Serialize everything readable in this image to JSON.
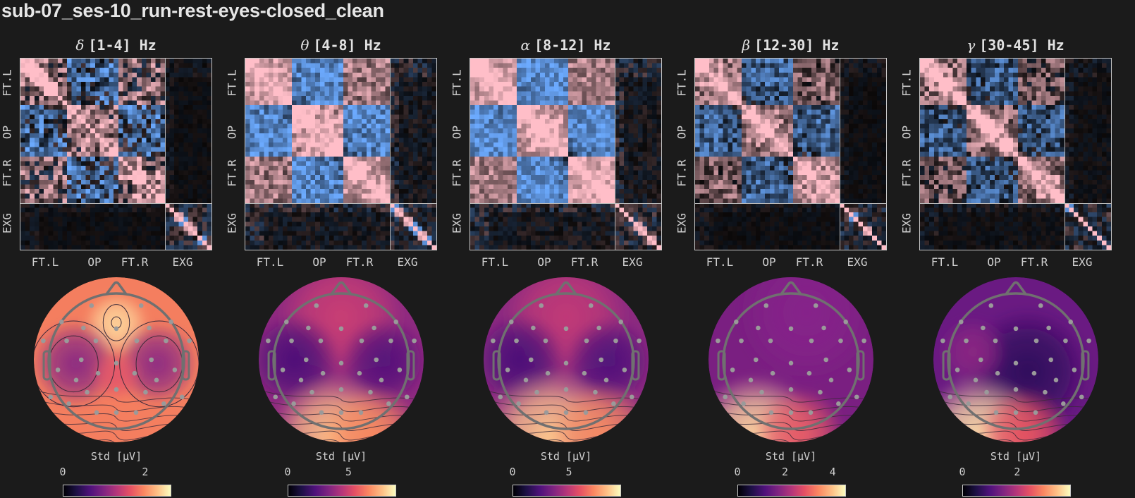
{
  "title": "sub-07_ses-10_run-rest-eyes-closed_clean",
  "matrix_groups": {
    "labels": [
      "FT.L",
      "OP",
      "FT.R",
      "EXG"
    ],
    "n_channels": 41,
    "n_main": 31
  },
  "panels": [
    {
      "greek": "δ",
      "range": "[1-4] Hz",
      "cbar_title": "Std [μV]",
      "cbar_ticks": [
        "0",
        "2"
      ],
      "cbar_max": 2.6,
      "topo_pattern": "delta"
    },
    {
      "greek": "θ",
      "range": "[4-8] Hz",
      "cbar_title": "Std [μV]",
      "cbar_ticks": [
        "0",
        "5"
      ],
      "cbar_max": 8.8,
      "topo_pattern": "theta"
    },
    {
      "greek": "α",
      "range": "[8-12] Hz",
      "cbar_title": "Std [μV]",
      "cbar_ticks": [
        "0",
        "5"
      ],
      "cbar_max": 9.5,
      "topo_pattern": "alpha"
    },
    {
      "greek": "β",
      "range": "[12-30] Hz",
      "cbar_title": "Std [μV]",
      "cbar_ticks": [
        "0",
        "2",
        "4"
      ],
      "cbar_max": 4.5,
      "topo_pattern": "beta"
    },
    {
      "greek": "γ",
      "range": "[30-45] Hz",
      "cbar_title": "Std [μV]",
      "cbar_ticks": [
        "0",
        "2"
      ],
      "cbar_max": 3.9,
      "topo_pattern": "gamma"
    }
  ],
  "chart_data": [
    {
      "type": "heatmap",
      "title": "δ [1-4] Hz",
      "xlabel_ticks": [
        "FT.L",
        "OP",
        "FT.R",
        "EXG"
      ],
      "ylabel_ticks": [
        "FT.L",
        "OP",
        "FT.R",
        "EXG"
      ],
      "colormap": "diverging blue-black-pink (correlation)",
      "description": "Channel-by-channel correlation matrix; EEG block (FT.L/OP/FT.R) and EXG block separated by grid lines"
    },
    {
      "type": "heatmap",
      "title": "θ [4-8] Hz",
      "xlabel_ticks": [
        "FT.L",
        "OP",
        "FT.R",
        "EXG"
      ],
      "ylabel_ticks": [
        "FT.L",
        "OP",
        "FT.R",
        "EXG"
      ]
    },
    {
      "type": "heatmap",
      "title": "α [8-12] Hz",
      "xlabel_ticks": [
        "FT.L",
        "OP",
        "FT.R",
        "EXG"
      ],
      "ylabel_ticks": [
        "FT.L",
        "OP",
        "FT.R",
        "EXG"
      ]
    },
    {
      "type": "heatmap",
      "title": "β [12-30] Hz",
      "xlabel_ticks": [
        "FT.L",
        "OP",
        "FT.R",
        "EXG"
      ],
      "ylabel_ticks": [
        "FT.L",
        "OP",
        "FT.R",
        "EXG"
      ]
    },
    {
      "type": "heatmap",
      "title": "γ [30-45] Hz",
      "xlabel_ticks": [
        "FT.L",
        "OP",
        "FT.R",
        "EXG"
      ],
      "ylabel_ticks": [
        "FT.L",
        "OP",
        "FT.R",
        "EXG"
      ]
    },
    {
      "type": "heatmap",
      "title": "Topomap δ [1-4] Hz",
      "colorbar_label": "Std [μV]",
      "colorbar_ticks": [
        0,
        2
      ],
      "vmin": 0,
      "vmax": 2.6,
      "description": "High frontal-central peak, low temporal lobes, high periphery",
      "colormap": "magma"
    },
    {
      "type": "heatmap",
      "title": "Topomap θ [4-8] Hz",
      "colorbar_label": "Std [μV]",
      "colorbar_ticks": [
        0,
        5
      ],
      "vmin": 0,
      "vmax": 8.8,
      "description": "Mid frontal, low temporal, high occipital",
      "colormap": "magma"
    },
    {
      "type": "heatmap",
      "title": "Topomap α [8-12] Hz",
      "colorbar_label": "Std [μV]",
      "colorbar_ticks": [
        0,
        5
      ],
      "vmin": 0,
      "vmax": 9.5,
      "description": "Mid frontal, low temporal, high occipital",
      "colormap": "magma"
    },
    {
      "type": "heatmap",
      "title": "Topomap β [12-30] Hz",
      "colorbar_label": "Std [μV]",
      "colorbar_ticks": [
        0,
        2,
        4
      ],
      "vmin": 0,
      "vmax": 4.5,
      "description": "Uniform low, high left-occipital edge",
      "colormap": "magma"
    },
    {
      "type": "heatmap",
      "title": "Topomap γ [30-45] Hz",
      "colorbar_label": "Std [μV]",
      "colorbar_ticks": [
        0,
        2
      ],
      "vmin": 0,
      "vmax": 3.9,
      "description": "Low central-right, high occipital edge",
      "colormap": "magma"
    }
  ]
}
